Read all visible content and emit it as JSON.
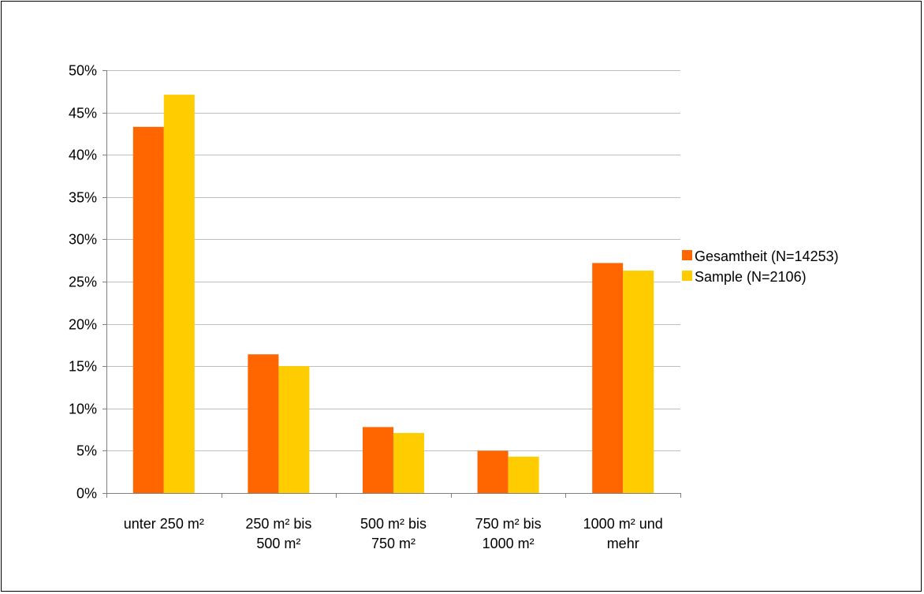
{
  "chart_data": {
    "type": "bar",
    "title": "",
    "xlabel": "",
    "ylabel": "",
    "ylim": [
      0,
      50
    ],
    "y_tick_step": 5,
    "y_tick_format": "percent",
    "grid": true,
    "legend_position": "right",
    "categories": [
      [
        "unter 250 m²"
      ],
      [
        "250 m² bis",
        "500 m²"
      ],
      [
        "500 m² bis",
        "750 m²"
      ],
      [
        "750 m² bis",
        "1000 m²"
      ],
      [
        "1000 m² und",
        "mehr"
      ]
    ],
    "series": [
      {
        "name": "Gesamtheit (N=14253)",
        "color": "#FF6600",
        "values": [
          43.3,
          16.4,
          7.8,
          5.0,
          27.2
        ]
      },
      {
        "name": "Sample (N=2106)",
        "color": "#FFCC00",
        "values": [
          47.1,
          15.0,
          7.1,
          4.3,
          26.3
        ]
      }
    ]
  }
}
